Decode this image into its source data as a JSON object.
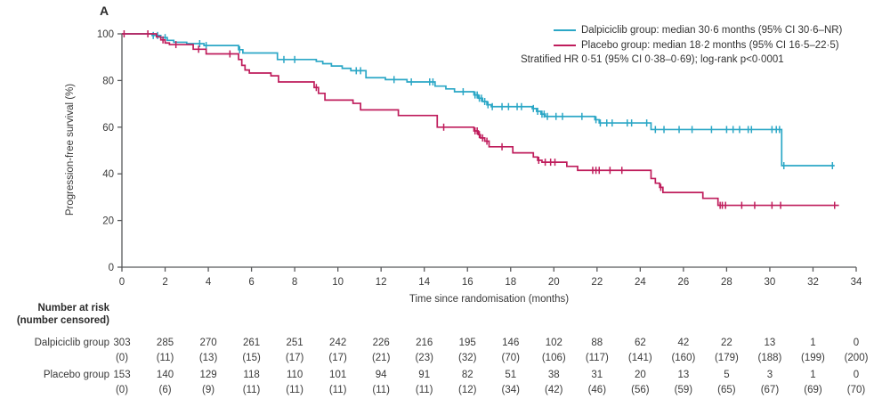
{
  "panel_label": "A",
  "colors": {
    "dalpiciclib": "#2BA7C6",
    "placebo": "#BF1D5C",
    "axis": "#58595B",
    "text": "#3a3a3a"
  },
  "legend": {
    "entries": [
      {
        "key": "dalpiciclib",
        "label": "Dalpiciclib group: median 30·6 months (95% CI 30·6–NR)"
      },
      {
        "key": "placebo",
        "label": "Placebo group: median 18·2 months (95% CI 16·5–22·5)"
      }
    ],
    "note": "Stratified HR 0·51 (95% CI 0·38–0·69); log-rank p<0·0001"
  },
  "chart_data": {
    "type": "line",
    "subtype": "kaplan-meier-step",
    "title": "",
    "xlabel": "Time since randomisation (months)",
    "ylabel": "Progression-free survival (%)",
    "xlim": [
      0,
      34
    ],
    "ylim": [
      0,
      100
    ],
    "xticks": [
      0,
      2,
      4,
      6,
      8,
      10,
      12,
      14,
      16,
      18,
      20,
      22,
      24,
      26,
      28,
      30,
      32,
      34
    ],
    "yticks": [
      0,
      20,
      40,
      60,
      80,
      100
    ],
    "grid": false,
    "legend_position": "top-right",
    "series": [
      {
        "name": "Dalpiciclib group",
        "color": "#2BA7C6",
        "start": [
          0,
          100
        ],
        "end_time": 33.0,
        "steps": [
          [
            1.4,
            99.3
          ],
          [
            1.8,
            98.4
          ],
          [
            2.1,
            97.2
          ],
          [
            2.4,
            96.4
          ],
          [
            3.0,
            95.8
          ],
          [
            3.8,
            95.0
          ],
          [
            5.4,
            93.2
          ],
          [
            5.6,
            91.8
          ],
          [
            7.2,
            89.0
          ],
          [
            9.0,
            88.2
          ],
          [
            9.3,
            87.2
          ],
          [
            9.7,
            86.2
          ],
          [
            10.2,
            85.2
          ],
          [
            10.6,
            84.2
          ],
          [
            11.3,
            81.2
          ],
          [
            12.2,
            80.4
          ],
          [
            13.2,
            79.4
          ],
          [
            14.5,
            77.6
          ],
          [
            15.0,
            76.4
          ],
          [
            15.4,
            75.2
          ],
          [
            16.3,
            73.8
          ],
          [
            16.5,
            72.4
          ],
          [
            16.7,
            71.0
          ],
          [
            16.9,
            69.6
          ],
          [
            17.1,
            68.8
          ],
          [
            19.0,
            68.0
          ],
          [
            19.2,
            66.8
          ],
          [
            19.4,
            65.6
          ],
          [
            19.6,
            64.6
          ],
          [
            21.9,
            63.2
          ],
          [
            22.1,
            61.8
          ],
          [
            24.5,
            59.0
          ],
          [
            30.55,
            43.5
          ]
        ],
        "censor_times": [
          1.45,
          1.65,
          2.0,
          3.6,
          3.9,
          5.45,
          7.5,
          8.0,
          10.85,
          11.05,
          12.6,
          13.4,
          14.25,
          14.4,
          15.8,
          16.35,
          16.45,
          16.55,
          16.65,
          16.8,
          16.95,
          17.15,
          17.6,
          17.9,
          18.3,
          18.5,
          19.05,
          19.25,
          19.45,
          19.55,
          19.7,
          20.1,
          20.4,
          21.3,
          21.95,
          22.15,
          22.45,
          22.7,
          23.4,
          23.6,
          24.3,
          24.7,
          25.1,
          25.8,
          26.4,
          27.3,
          28.0,
          28.3,
          28.6,
          29.0,
          29.15,
          30.1,
          30.3,
          30.45,
          30.65,
          32.9
        ]
      },
      {
        "name": "Placebo group",
        "color": "#BF1D5C",
        "start": [
          0,
          100
        ],
        "end_time": 33.2,
        "steps": [
          [
            1.6,
            98.7
          ],
          [
            1.8,
            97.4
          ],
          [
            2.0,
            96.1
          ],
          [
            2.2,
            95.4
          ],
          [
            3.3,
            93.4
          ],
          [
            3.9,
            91.4
          ],
          [
            5.4,
            89.0
          ],
          [
            5.55,
            86.5
          ],
          [
            5.7,
            84.5
          ],
          [
            5.9,
            83.2
          ],
          [
            6.9,
            82.0
          ],
          [
            7.25,
            79.4
          ],
          [
            8.9,
            77.0
          ],
          [
            9.1,
            74.5
          ],
          [
            9.4,
            71.6
          ],
          [
            10.7,
            70.2
          ],
          [
            11.05,
            67.4
          ],
          [
            12.8,
            65.0
          ],
          [
            14.6,
            60.0
          ],
          [
            16.3,
            58.4
          ],
          [
            16.5,
            56.8
          ],
          [
            16.6,
            55.4
          ],
          [
            16.8,
            54.0
          ],
          [
            17.0,
            51.6
          ],
          [
            18.1,
            49.0
          ],
          [
            19.05,
            47.2
          ],
          [
            19.25,
            45.8
          ],
          [
            19.45,
            45.0
          ],
          [
            20.6,
            43.2
          ],
          [
            21.1,
            41.5
          ],
          [
            24.5,
            38.0
          ],
          [
            24.7,
            36.0
          ],
          [
            24.9,
            34.2
          ],
          [
            25.05,
            32.0
          ],
          [
            26.9,
            29.5
          ],
          [
            27.6,
            26.5
          ]
        ],
        "censor_times": [
          0.1,
          1.2,
          1.9,
          2.5,
          3.55,
          5.0,
          9.0,
          14.9,
          16.35,
          16.45,
          16.55,
          16.7,
          16.9,
          17.6,
          19.3,
          19.6,
          19.85,
          20.05,
          21.8,
          21.95,
          22.1,
          22.6,
          23.15,
          24.95,
          27.7,
          27.8,
          27.95,
          28.7,
          29.3,
          30.1,
          30.5,
          33.0
        ]
      }
    ]
  },
  "risk_table": {
    "header_line1": "Number at risk",
    "header_line2": "(number censored)",
    "timepoints": [
      0,
      2,
      4,
      6,
      8,
      10,
      12,
      14,
      16,
      18,
      20,
      22,
      24,
      26,
      28,
      30,
      32,
      34
    ],
    "rows": [
      {
        "label": "Dalpiciclib group",
        "at_risk": [
          303,
          285,
          270,
          261,
          251,
          242,
          226,
          216,
          195,
          146,
          102,
          88,
          62,
          42,
          22,
          13,
          1,
          0
        ],
        "censored": [
          "(0)",
          "(11)",
          "(13)",
          "(15)",
          "(17)",
          "(17)",
          "(21)",
          "(23)",
          "(32)",
          "(70)",
          "(106)",
          "(117)",
          "(141)",
          "(160)",
          "(179)",
          "(188)",
          "(199)",
          "(200)"
        ]
      },
      {
        "label": "Placebo group",
        "at_risk": [
          153,
          140,
          129,
          118,
          110,
          101,
          94,
          91,
          82,
          51,
          38,
          31,
          20,
          13,
          5,
          3,
          1,
          0
        ],
        "censored": [
          "(0)",
          "(6)",
          "(9)",
          "(11)",
          "(11)",
          "(11)",
          "(11)",
          "(11)",
          "(12)",
          "(34)",
          "(42)",
          "(46)",
          "(56)",
          "(59)",
          "(65)",
          "(67)",
          "(69)",
          "(70)"
        ]
      }
    ]
  }
}
